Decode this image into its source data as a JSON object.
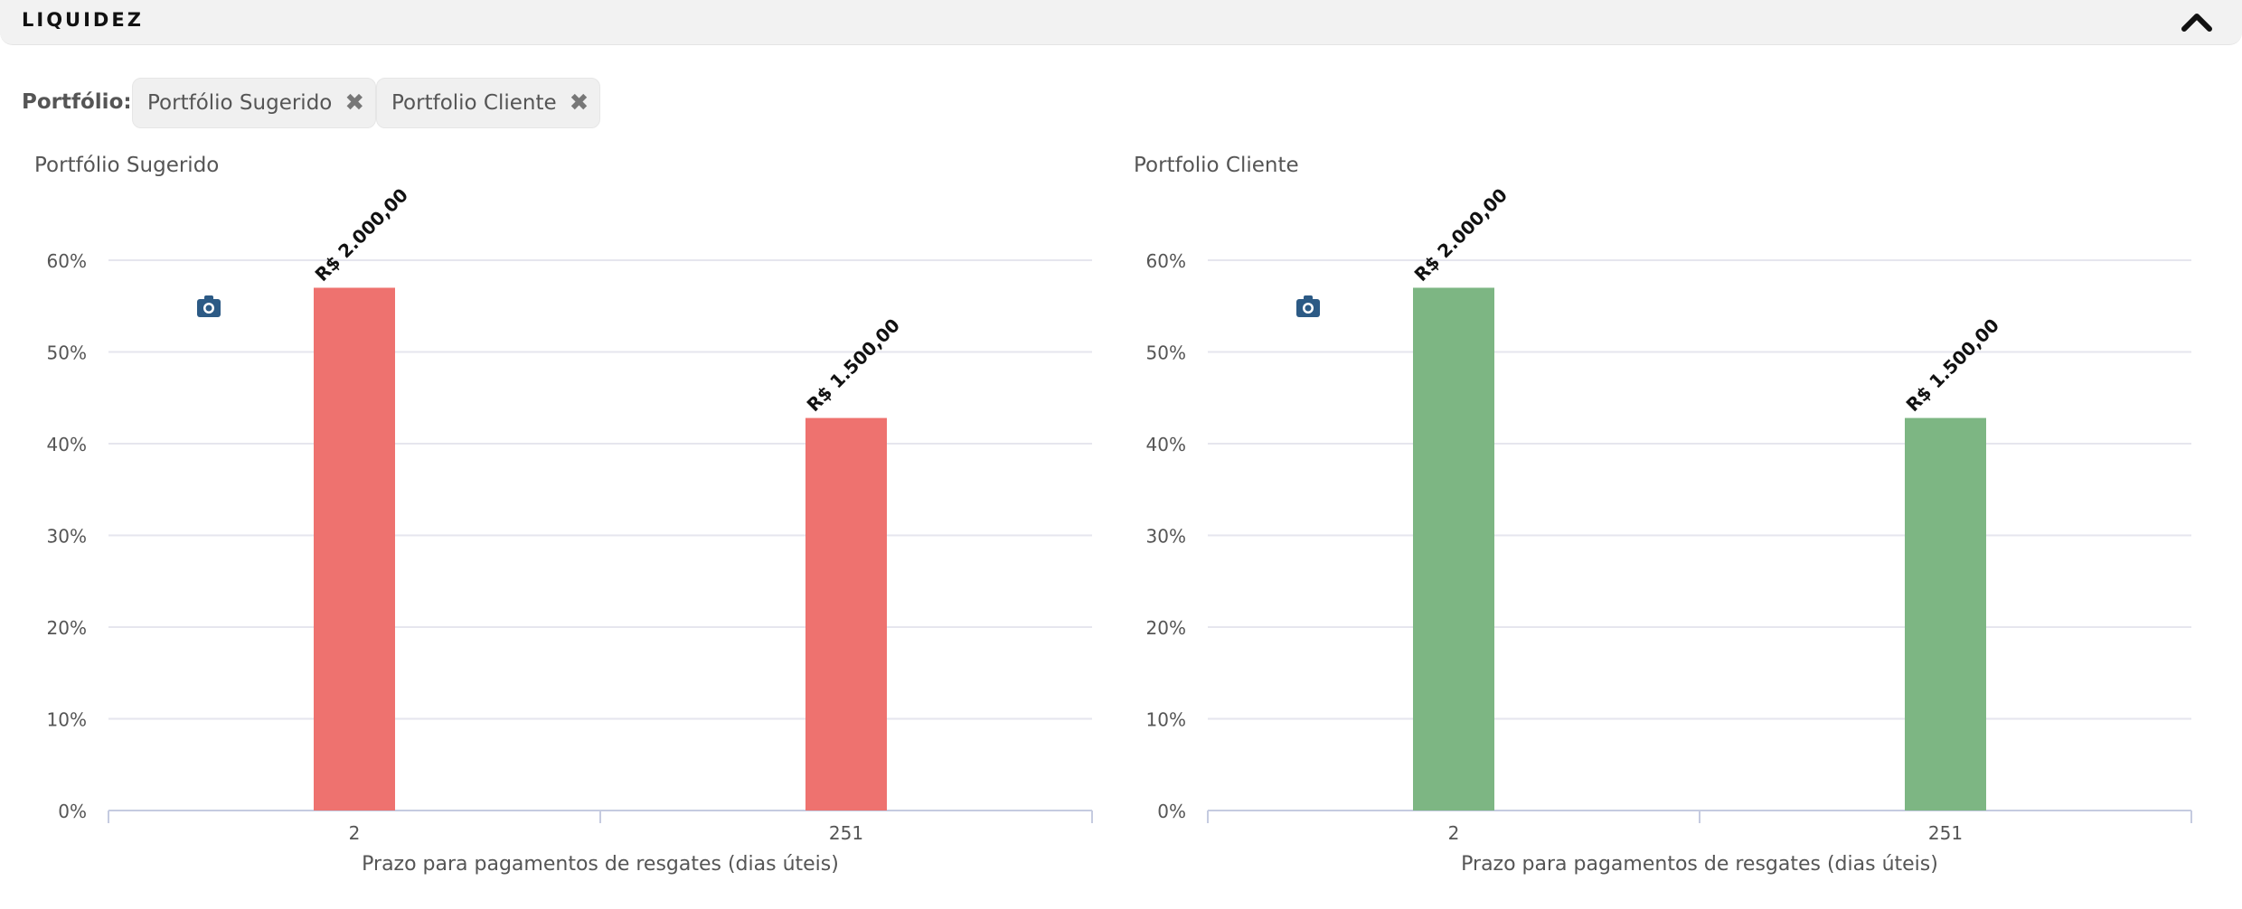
{
  "panel": {
    "title": "LIQUIDEZ",
    "collapse_icon": "chevron-up-icon"
  },
  "filter": {
    "label": "Portfólio:",
    "chips": [
      {
        "label": "Portfólio Sugerido",
        "remove_icon": "close-icon"
      },
      {
        "label": "Portfolio Cliente",
        "remove_icon": "close-icon"
      }
    ]
  },
  "colors": {
    "sugerido_bar": "#ee726f",
    "cliente_bar": "#7db683",
    "grid": "#e6e6ee",
    "axis": "#c5cbe0",
    "camera": "#2c5a85"
  },
  "chart_data": [
    {
      "type": "bar",
      "title": "Portfólio Sugerido",
      "categories": [
        "2",
        "251"
      ],
      "values": [
        57,
        42.8
      ],
      "data_labels": [
        "R$ 2.000,00",
        "R$ 1.500,00"
      ],
      "xlabel": "Prazo para pagamentos de resgates (dias úteis)",
      "ylabel": "",
      "ylim": [
        0,
        60
      ],
      "yticks": [
        "0%",
        "10%",
        "20%",
        "30%",
        "40%",
        "50%",
        "60%"
      ],
      "grid": true,
      "color": "#ee726f",
      "export_icon": "camera-icon"
    },
    {
      "type": "bar",
      "title": "Portfolio Cliente",
      "categories": [
        "2",
        "251"
      ],
      "values": [
        57,
        42.8
      ],
      "data_labels": [
        "R$ 2.000,00",
        "R$ 1.500,00"
      ],
      "xlabel": "Prazo para pagamentos de resgates (dias úteis)",
      "ylabel": "",
      "ylim": [
        0,
        60
      ],
      "yticks": [
        "0%",
        "10%",
        "20%",
        "30%",
        "40%",
        "50%",
        "60%"
      ],
      "grid": true,
      "color": "#7db683",
      "export_icon": "camera-icon"
    }
  ]
}
